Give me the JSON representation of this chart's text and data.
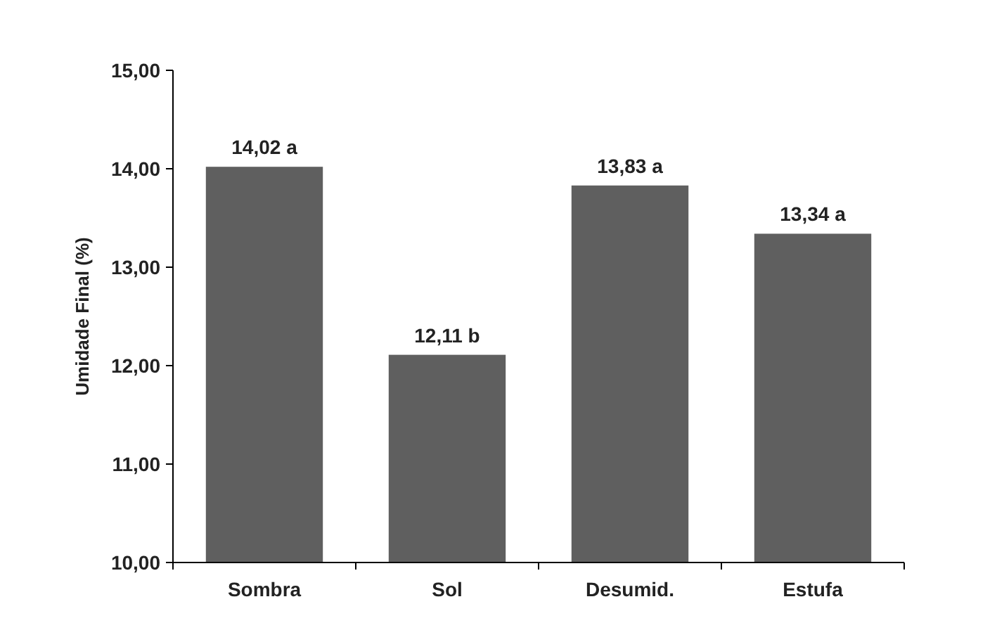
{
  "chart_data": {
    "type": "bar",
    "ylabel": "Umidade Final (%)",
    "categories": [
      "Sombra",
      "Sol",
      "Desumid.",
      "Estufa"
    ],
    "values": [
      14.02,
      12.11,
      13.83,
      13.34
    ],
    "value_labels": [
      "14,02 a",
      "12,11 b",
      "13,83 a",
      "13,34 a"
    ],
    "color": "#5f5f5f",
    "ylim": [
      10,
      15
    ],
    "yticks": [
      {
        "value": 10,
        "label": "10,00"
      },
      {
        "value": 11,
        "label": "11,00"
      },
      {
        "value": 12,
        "label": "12,00"
      },
      {
        "value": 13,
        "label": "13,00"
      },
      {
        "value": 14,
        "label": "14,00"
      },
      {
        "value": 15,
        "label": "15,00"
      }
    ],
    "grid": false
  }
}
